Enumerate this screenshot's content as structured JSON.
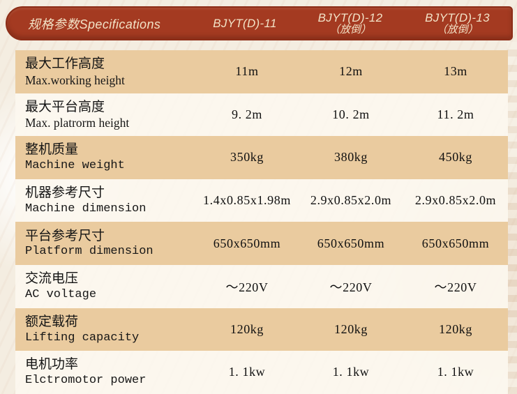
{
  "colors": {
    "header_bg": "#A43A21",
    "header_border": "#8C2D17",
    "header_text": "#F2E2C6",
    "row_tan": "#EACB9F",
    "row_light": "#FBF6EC",
    "page_bg": "#F4EDE1",
    "body_text": "#141414"
  },
  "table": {
    "header": {
      "spec_label": "规格参数Specifications",
      "col2_model": "BJYT(D)-11",
      "col3_model": "BJYT(D)-12",
      "col3_fold": "（放倒）",
      "col4_model": "BJYT(D)-13",
      "col4_fold": "（放倒）"
    },
    "rows": [
      {
        "zh": "最大工作高度",
        "en": "Max.working height",
        "v1": "11m",
        "v2": "12m",
        "v3": "13m"
      },
      {
        "zh": "最大平台高度",
        "en": "Max. platrorm height",
        "v1": "9. 2m",
        "v2": "10. 2m",
        "v3": "11. 2m"
      },
      {
        "zh": "整机质量",
        "en": "Machine weight",
        "v1": "350kg",
        "v2": "380kg",
        "v3": "450kg"
      },
      {
        "zh": "机器参考尺寸",
        "en": "Machine dimension",
        "v1": "1.4x0.85x1.98m",
        "v2": "2.9x0.85x2.0m",
        "v3": "2.9x0.85x2.0m"
      },
      {
        "zh": "平台参考尺寸",
        "en": "Platform dimension",
        "v1": "650x650mm",
        "v2": "650x650mm",
        "v3": "650x650mm"
      },
      {
        "zh": "交流电压",
        "en": "AC voltage",
        "v1": "～220V",
        "v2": "～220V",
        "v3": "～220V"
      },
      {
        "zh": "额定载荷",
        "en": "Lifting capacity",
        "v1": "120kg",
        "v2": "120kg",
        "v3": "120kg"
      },
      {
        "zh": "电机功率",
        "en": "Elctromotor power",
        "v1": "1. 1kw",
        "v2": "1. 1kw",
        "v3": "1. 1kw"
      }
    ]
  }
}
